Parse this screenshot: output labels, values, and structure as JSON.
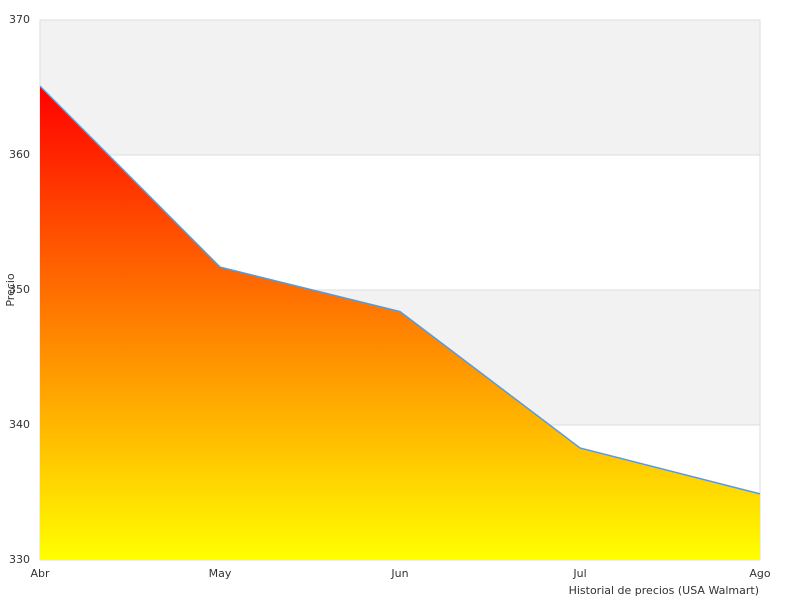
{
  "chart_data": {
    "type": "area",
    "x_label": "Historial de precios (USA Walmart)",
    "y_label": "Precio",
    "categories": [
      "Abr",
      "May",
      "Jun",
      "Jul",
      "Ago"
    ],
    "values": [
      365.1,
      351.7,
      348.4,
      338.3,
      334.9
    ],
    "ylim": [
      330,
      370
    ],
    "yticks": [
      330,
      340,
      350,
      360,
      370
    ],
    "line_color": "#5b9bd5",
    "gradient": [
      "#ff0000",
      "#ffff00"
    ],
    "band_color": "#f2f2f2"
  }
}
